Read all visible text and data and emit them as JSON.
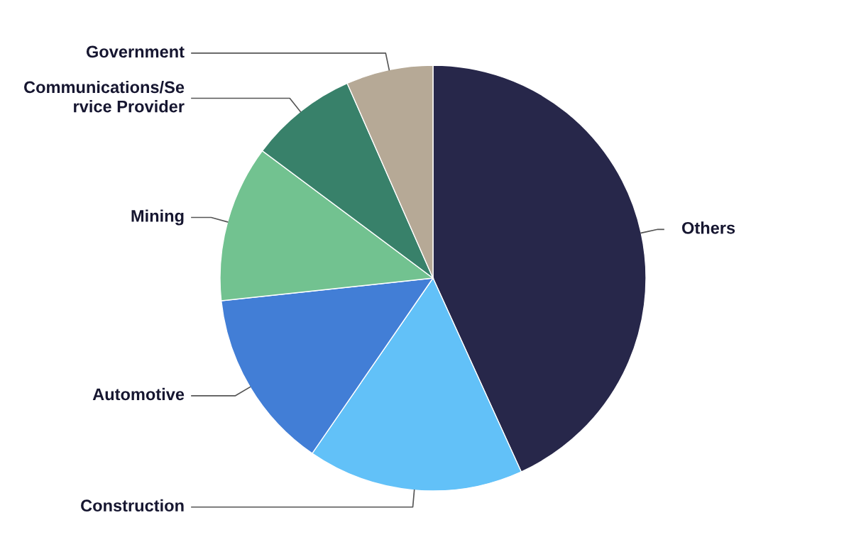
{
  "chart_data": {
    "type": "pie",
    "categories": [
      "Others",
      "Construction",
      "Automotive",
      "Mining",
      "Communications/Service Provider",
      "Government"
    ],
    "values": [
      43.2,
      16.4,
      13.7,
      11.9,
      8.2,
      6.6
    ],
    "colors": [
      "#27274a",
      "#62c1f8",
      "#427ed6",
      "#72c290",
      "#38816a",
      "#b6a996"
    ]
  }
}
